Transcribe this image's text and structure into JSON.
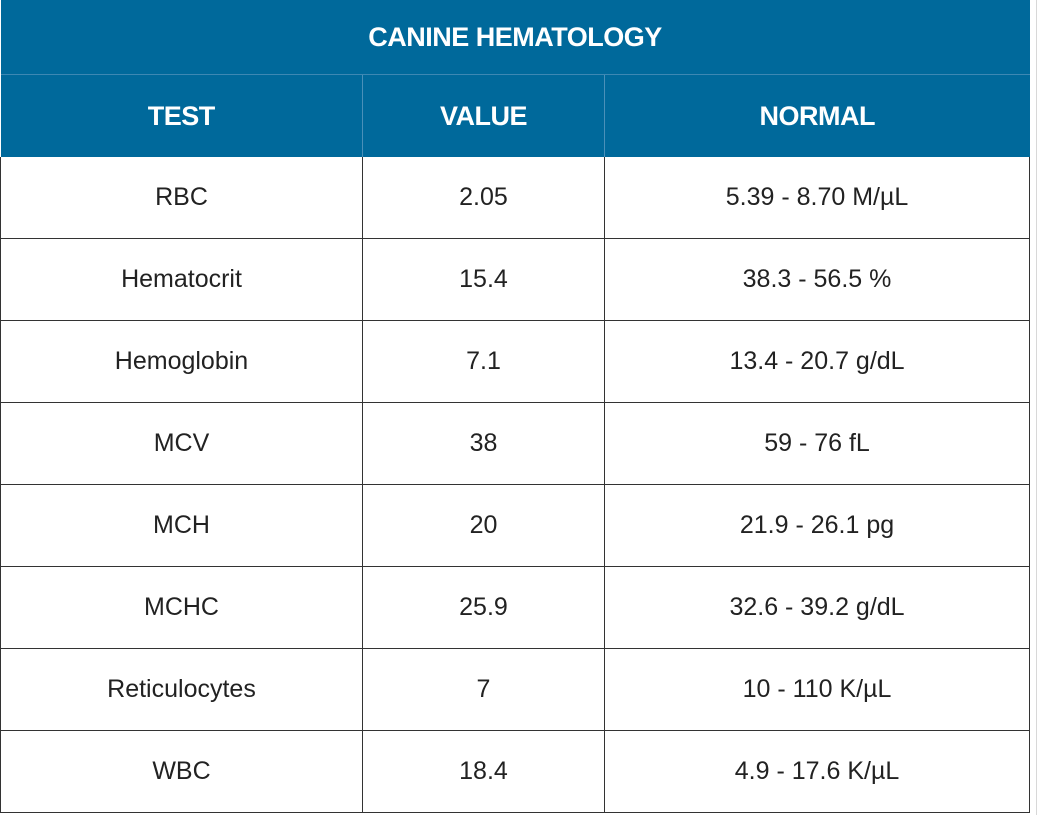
{
  "colors": {
    "header_bg": "#00699b",
    "header_text": "#ffffff",
    "cell_text": "#222222",
    "border": "#333333"
  },
  "table": {
    "title": "CANINE HEMATOLOGY",
    "headers": {
      "test": "TEST",
      "value": "VALUE",
      "normal": "NORMAL"
    },
    "rows": [
      {
        "test": "RBC",
        "value": "2.05",
        "normal": "5.39 - 8.70 M/µL"
      },
      {
        "test": "Hematocrit",
        "value": "15.4",
        "normal": "38.3 - 56.5 %"
      },
      {
        "test": "Hemoglobin",
        "value": "7.1",
        "normal": "13.4 - 20.7 g/dL"
      },
      {
        "test": "MCV",
        "value": "38",
        "normal": "59 - 76 fL"
      },
      {
        "test": "MCH",
        "value": "20",
        "normal": "21.9 - 26.1 pg"
      },
      {
        "test": "MCHC",
        "value": "25.9",
        "normal": "32.6 - 39.2 g/dL"
      },
      {
        "test": "Reticulocytes",
        "value": "7",
        "normal": "10 - 110 K/µL"
      },
      {
        "test": "WBC",
        "value": "18.4",
        "normal": "4.9 - 17.6 K/µL"
      }
    ]
  }
}
